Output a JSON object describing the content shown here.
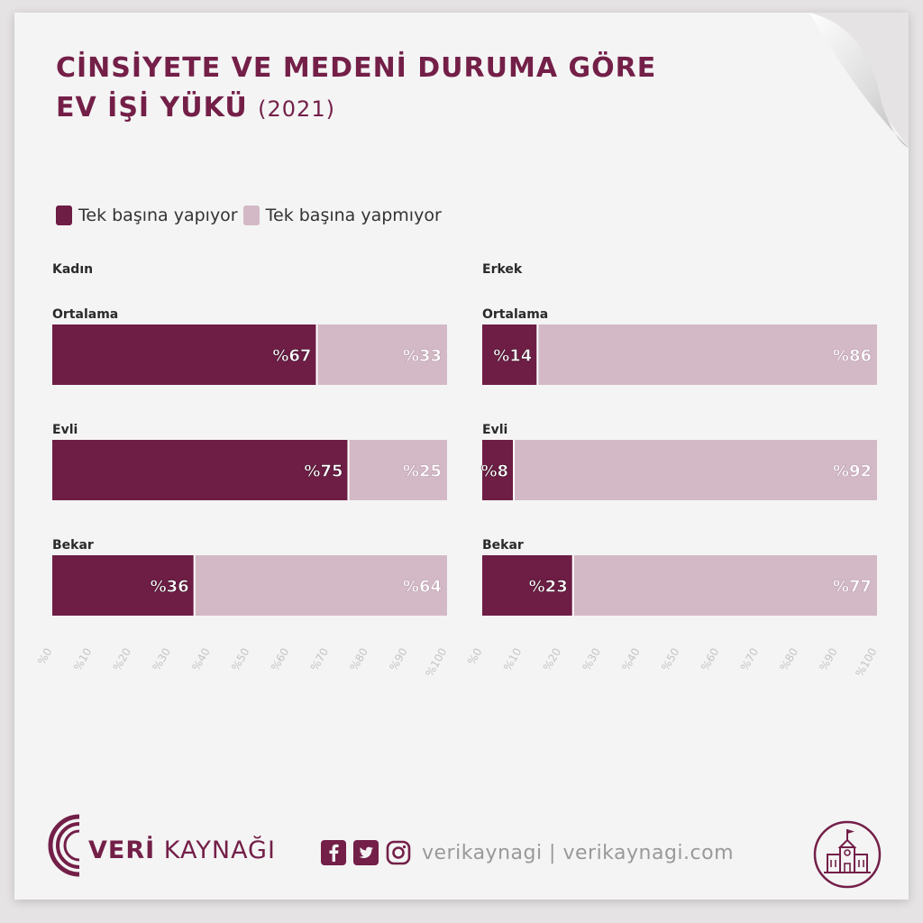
{
  "title": {
    "line1": "CİNSİYETE VE MEDENİ DURUMA GÖRE",
    "line2": "EV İŞİ YÜKÜ",
    "year": "(2021)"
  },
  "legend": [
    {
      "label": "Tek başına yapıyor",
      "color": "#6e1d45"
    },
    {
      "label": "Tek başına yapmıyor",
      "color": "#d3b9c6"
    }
  ],
  "chart_data": [
    {
      "type": "bar",
      "orientation": "horizontal-stacked",
      "panel": "Kadın",
      "categories": [
        "Ortalama",
        "Evli",
        "Bekar"
      ],
      "series": [
        {
          "name": "Tek başına yapıyor",
          "values": [
            67,
            75,
            36
          ],
          "labels": [
            "%67",
            "%75",
            "%36"
          ]
        },
        {
          "name": "Tek başına yapmıyor",
          "values": [
            33,
            25,
            64
          ],
          "labels": [
            "%33",
            "%25",
            "%64"
          ]
        }
      ],
      "xlim": [
        0,
        100
      ],
      "ticks": [
        "%0",
        "%10",
        "%20",
        "%30",
        "%40",
        "%50",
        "%60",
        "%70",
        "%80",
        "%90",
        "%100"
      ]
    },
    {
      "type": "bar",
      "orientation": "horizontal-stacked",
      "panel": "Erkek",
      "categories": [
        "Ortalama",
        "Evli",
        "Bekar"
      ],
      "series": [
        {
          "name": "Tek başına yapıyor",
          "values": [
            14,
            8,
            23
          ],
          "labels": [
            "%14",
            "%8",
            "%23"
          ]
        },
        {
          "name": "Tek başına yapmıyor",
          "values": [
            86,
            92,
            77
          ],
          "labels": [
            "%86",
            "%92",
            "%77"
          ]
        }
      ],
      "xlim": [
        0,
        100
      ],
      "ticks": [
        "%0",
        "%10",
        "%20",
        "%30",
        "%40",
        "%50",
        "%60",
        "%70",
        "%80",
        "%90",
        "%100"
      ]
    }
  ],
  "footer": {
    "brand_bold": "VERİ",
    "brand_rest": " KAYNAĞI",
    "social_text": "verikaynagi | verikaynagi.com",
    "icons": [
      "facebook-icon",
      "twitter-icon",
      "instagram-icon",
      "school-building-icon"
    ],
    "accent": "#731f48"
  }
}
